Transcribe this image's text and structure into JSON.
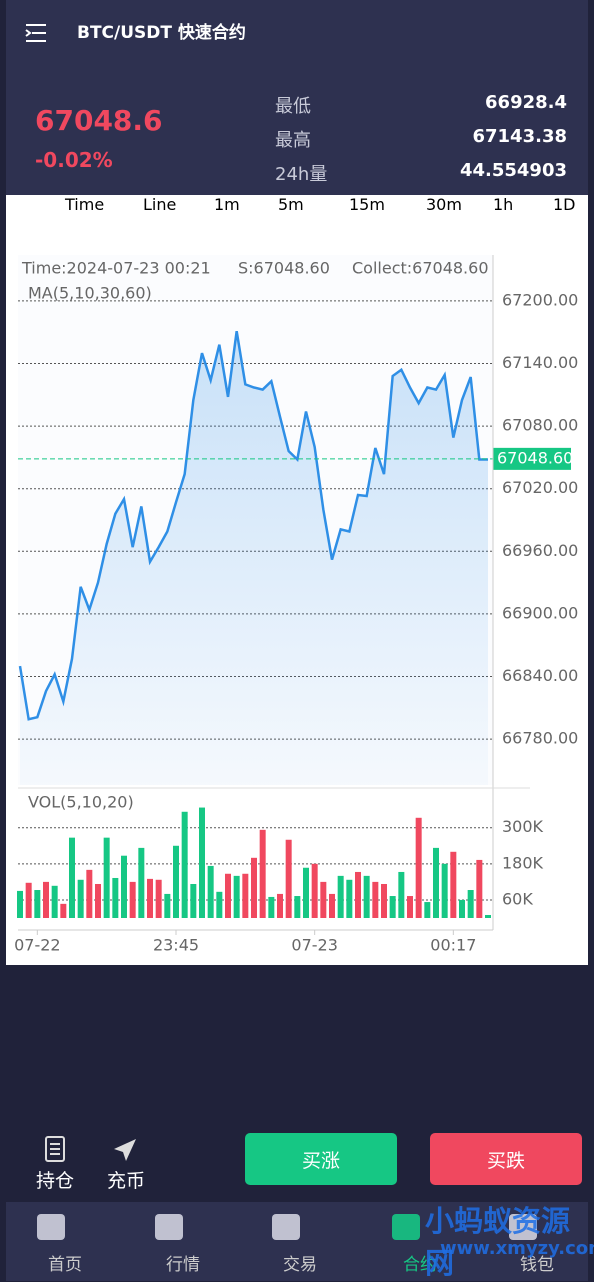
{
  "header": {
    "title": "BTC/USDT 快速合约"
  },
  "ticker": {
    "price": "67048.6",
    "change": "-0.02%",
    "stats": [
      {
        "label": "最低",
        "value": "66928.4"
      },
      {
        "label": "最高",
        "value": "67143.38"
      },
      {
        "label": "24h量",
        "value": "44.554903"
      }
    ]
  },
  "tabs": {
    "items": [
      "Time",
      "Line",
      "1m",
      "5m",
      "15m",
      "30m",
      "1h",
      "1D"
    ],
    "active": 1
  },
  "chart": {
    "type": "line",
    "info": {
      "time": "Time:2024-07-23 00:21",
      "s": "S:67048.60",
      "collect": "Collect:67048.60",
      "ma": "MA(5,10,30,60)"
    },
    "color": "#2f8fe6",
    "grid": true,
    "categories": [
      null,
      null,
      "07-22",
      null,
      null,
      null,
      null,
      null,
      null,
      null,
      null,
      null,
      null,
      null,
      null,
      null,
      null,
      null,
      "23:45",
      null,
      null,
      null,
      null,
      null,
      null,
      null,
      null,
      null,
      null,
      null,
      null,
      null,
      null,
      null,
      "07-23",
      null,
      null,
      null,
      null,
      null,
      null,
      null,
      null,
      null,
      null,
      null,
      null,
      null,
      null,
      null,
      "00:17",
      null,
      null,
      null,
      null
    ],
    "price": {
      "values": [
        66850,
        66799,
        66801,
        66826,
        66842,
        66816,
        66857,
        66926,
        66904,
        66930,
        66967,
        66996,
        67010,
        66964,
        67003,
        66950,
        66964,
        66979,
        67007,
        67034,
        67105,
        67150,
        67124,
        67158,
        67108,
        67171,
        67120,
        67117,
        67115,
        67123,
        67089,
        67056,
        67048,
        67094,
        67060,
        67000,
        66952,
        66981,
        66979,
        67014,
        67013,
        67059,
        67034,
        67128,
        67134,
        67117,
        67102,
        67117,
        67115,
        67129,
        67069,
        67105,
        67127,
        67048,
        67048
      ]
    },
    "ylim": [
      66736,
      67244
    ],
    "yticks": [
      {
        "value": 67200,
        "label": "67200.00"
      },
      {
        "value": 67140,
        "label": "67140.00"
      },
      {
        "value": 67080,
        "label": "67080.00"
      },
      {
        "value": 67020,
        "label": "67020.00"
      },
      {
        "value": 66960,
        "label": "66960.00"
      },
      {
        "value": 66900,
        "label": "66900.00"
      },
      {
        "value": 66840,
        "label": "66840.00"
      },
      {
        "value": 66780,
        "label": "66780.00"
      }
    ],
    "current": {
      "value": 67048.6,
      "label": "67048.60"
    },
    "volume": {
      "title": "VOL(5,10,20)",
      "up_color": "#16c784",
      "down_color": "#f0485f",
      "values": [
        90000,
        117000,
        93000,
        120000,
        107000,
        47000,
        267000,
        127000,
        160000,
        113000,
        267000,
        133000,
        207000,
        120000,
        233000,
        130000,
        127000,
        80000,
        240000,
        353000,
        113000,
        367000,
        173000,
        87000,
        147000,
        140000,
        147000,
        200000,
        293000,
        70000,
        80000,
        260000,
        73000,
        167000,
        180000,
        120000,
        80000,
        140000,
        127000,
        153000,
        140000,
        120000,
        113000,
        73000,
        153000,
        73000,
        333000,
        53000,
        233000,
        180000,
        220000,
        60000,
        93000,
        193000,
        10000
      ],
      "up": [
        true,
        false,
        true,
        false,
        true,
        false,
        true,
        true,
        false,
        false,
        true,
        true,
        true,
        false,
        true,
        false,
        false,
        true,
        true,
        true,
        true,
        true,
        true,
        true,
        false,
        true,
        false,
        false,
        false,
        true,
        false,
        false,
        true,
        true,
        false,
        false,
        false,
        true,
        true,
        false,
        true,
        false,
        false,
        true,
        true,
        false,
        false,
        true,
        true,
        true,
        false,
        true,
        true,
        false,
        true
      ],
      "ylim": [
        0,
        432000
      ],
      "yticks": [
        {
          "value": 300000,
          "label": "300K"
        },
        {
          "value": 180000,
          "label": "180K"
        },
        {
          "value": 60000,
          "label": "60K"
        }
      ]
    }
  },
  "actions": {
    "position": "持仓",
    "deposit": "充币",
    "buy_up": "买涨",
    "buy_down": "买跌"
  },
  "nav": {
    "items": [
      "首页",
      "行情",
      "交易",
      "合约",
      "钱包"
    ],
    "active": 3
  },
  "watermark": {
    "name": "小蚂蚁资源网",
    "url": "www.xmyzy.com"
  }
}
